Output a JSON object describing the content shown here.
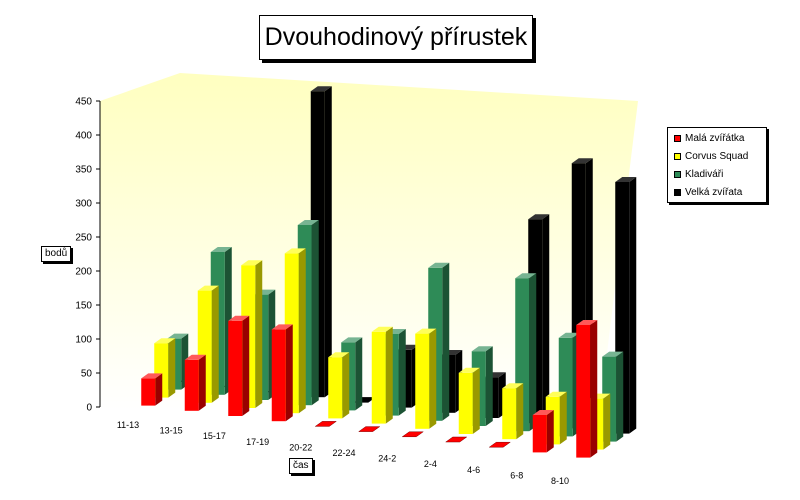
{
  "chart_data": {
    "type": "bar",
    "title": "Dvouhodinový přírustek",
    "xlabel": "čas",
    "ylabel": "bodů",
    "ylim": [
      0,
      450
    ],
    "yticks": [
      0,
      50,
      100,
      150,
      200,
      250,
      300,
      350,
      400,
      450
    ],
    "categories": [
      "11-13",
      "13-15",
      "15-17",
      "17-19",
      "20-22",
      "22-24",
      "24-2",
      "2-4",
      "4-6",
      "6-8",
      "8-10"
    ],
    "legend_position": "right",
    "series": [
      {
        "name": "Malá zvířátka",
        "color": "#ff0000",
        "values": [
          40,
          75,
          140,
          135,
          0,
          0,
          0,
          0,
          0,
          55,
          195
        ]
      },
      {
        "name": "Corvus Squad",
        "color": "#ffff00",
        "values": [
          80,
          165,
          210,
          235,
          90,
          135,
          140,
          90,
          75,
          70,
          75
        ]
      },
      {
        "name": "Kladiváři",
        "color": "#2e8b57",
        "values": [
          75,
          210,
          155,
          265,
          100,
          120,
          225,
          110,
          225,
          145,
          125
        ]
      },
      {
        "name": "Velká zvířata",
        "color": "#000000",
        "values": [
          0,
          0,
          0,
          450,
          0,
          85,
          85,
          60,
          300,
          390,
          370
        ]
      }
    ]
  }
}
